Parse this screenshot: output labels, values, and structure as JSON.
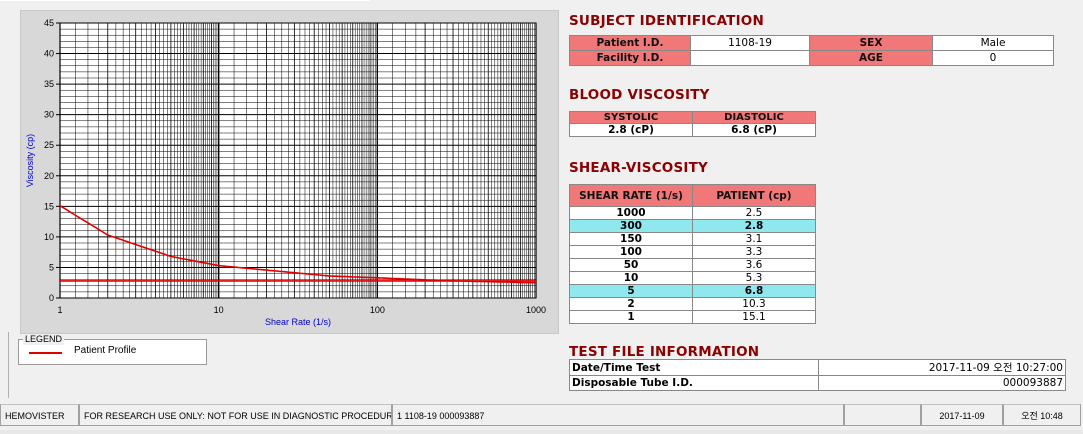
{
  "chart": {
    "y_ticks": [
      "45",
      "40",
      "35",
      "30",
      "25",
      "20",
      "15",
      "10",
      "5",
      "0"
    ],
    "x_ticks": [
      "1",
      "10",
      "100",
      "1000"
    ],
    "xlabel": "Shear Rate (1/s)",
    "ylabel": "Viscosity (cp)"
  },
  "chart_data": {
    "type": "line",
    "xscale": "log",
    "xlim": [
      1,
      1000
    ],
    "ylim": [
      0,
      45
    ],
    "xlabel": "Shear Rate (1/s)",
    "ylabel": "Viscosity (cp)",
    "series": [
      {
        "name": "Patient Profile",
        "x": [
          1,
          2,
          5,
          10,
          50,
          100,
          150,
          300,
          1000
        ],
        "y": [
          15.1,
          10.3,
          6.8,
          5.3,
          3.6,
          3.3,
          3.1,
          2.8,
          2.5
        ]
      }
    ],
    "reference_lines": [
      2.8
    ],
    "color": "#e00000",
    "grid": true
  },
  "legend": {
    "title": "LEGEND",
    "item": "Patient Profile"
  },
  "subject": {
    "header": "SUBJECT IDENTIFICATION",
    "patient_label": "Patient I.D.",
    "patient_value": "1108-19",
    "sex_label": "SEX",
    "sex_value": "Male",
    "facility_label": "Facility I.D.",
    "facility_value": "",
    "age_label": "AGE",
    "age_value": "0"
  },
  "blood": {
    "header": "BLOOD VISCOSITY",
    "systolic_label": "SYSTOLIC",
    "diastolic_label": "DIASTOLIC",
    "systolic_value": "2.8 (cP)",
    "diastolic_value": "6.8 (cP)"
  },
  "shear": {
    "header": "SHEAR-VISCOSITY",
    "col1": "SHEAR RATE (1/s)",
    "col2": "PATIENT (cp)",
    "rows": [
      {
        "rate": "1000",
        "val": "2.5",
        "hl": false
      },
      {
        "rate": "300",
        "val": "2.8",
        "hl": true
      },
      {
        "rate": "150",
        "val": "3.1",
        "hl": false
      },
      {
        "rate": "100",
        "val": "3.3",
        "hl": false
      },
      {
        "rate": "50",
        "val": "3.6",
        "hl": false
      },
      {
        "rate": "10",
        "val": "5.3",
        "hl": false
      },
      {
        "rate": "5",
        "val": "6.8",
        "hl": true
      },
      {
        "rate": "2",
        "val": "10.3",
        "hl": false
      },
      {
        "rate": "1",
        "val": "15.1",
        "hl": false
      }
    ]
  },
  "testfile": {
    "header": "TEST FILE INFORMATION",
    "date_label": "Date/Time Test",
    "date_value": "2017-11-09  오전 10:27:00",
    "tube_label": "Disposable Tube I.D.",
    "tube_value": "000093887"
  },
  "status": {
    "app": "HEMOVISTER",
    "notice": "FOR RESEARCH USE ONLY: NOT FOR USE IN DIAGNOSTIC PROCEDURES",
    "file": "1  1108-19  000093887",
    "empty": "",
    "date": "2017-11-09",
    "time": "오전 10:48"
  }
}
